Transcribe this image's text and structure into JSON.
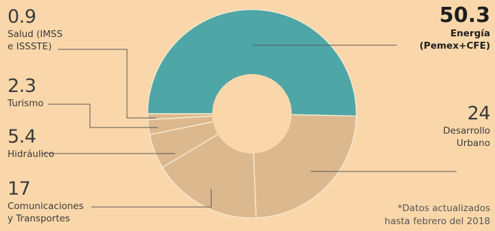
{
  "chart_data": {
    "type": "pie",
    "subtype": "half-donut",
    "slices": [
      {
        "value": 50.3,
        "value_label": "50.3",
        "label_lines": [
          "Energía",
          "(Pemex+CFE)"
        ],
        "color": "#4ea6a6"
      },
      {
        "value": 24,
        "value_label": "24",
        "label_lines": [
          "Desarrollo",
          "Urbano"
        ],
        "color": "#dcb88e"
      },
      {
        "value": 17,
        "value_label": "17",
        "label_lines": [
          "Comunicaciones",
          "y Transportes"
        ],
        "color": "#dcb88e"
      },
      {
        "value": 5.4,
        "value_label": "5.4",
        "label_lines": [
          "Hidráulico"
        ],
        "color": "#dcb88e"
      },
      {
        "value": 2.3,
        "value_label": "2.3",
        "label_lines": [
          "Turismo"
        ],
        "color": "#dcb88e"
      },
      {
        "value": 0.9,
        "value_label": "0.9",
        "label_lines": [
          "Salud (IMSS",
          "e ISSSTE)"
        ],
        "color": "#dcb88e"
      }
    ],
    "note_lines": [
      "*Datos actualizados",
      "hasta febrero del 2018"
    ]
  },
  "colors": {
    "background": "#f9d7aa",
    "separator": "#f6e8d2",
    "leader": "#555555"
  }
}
